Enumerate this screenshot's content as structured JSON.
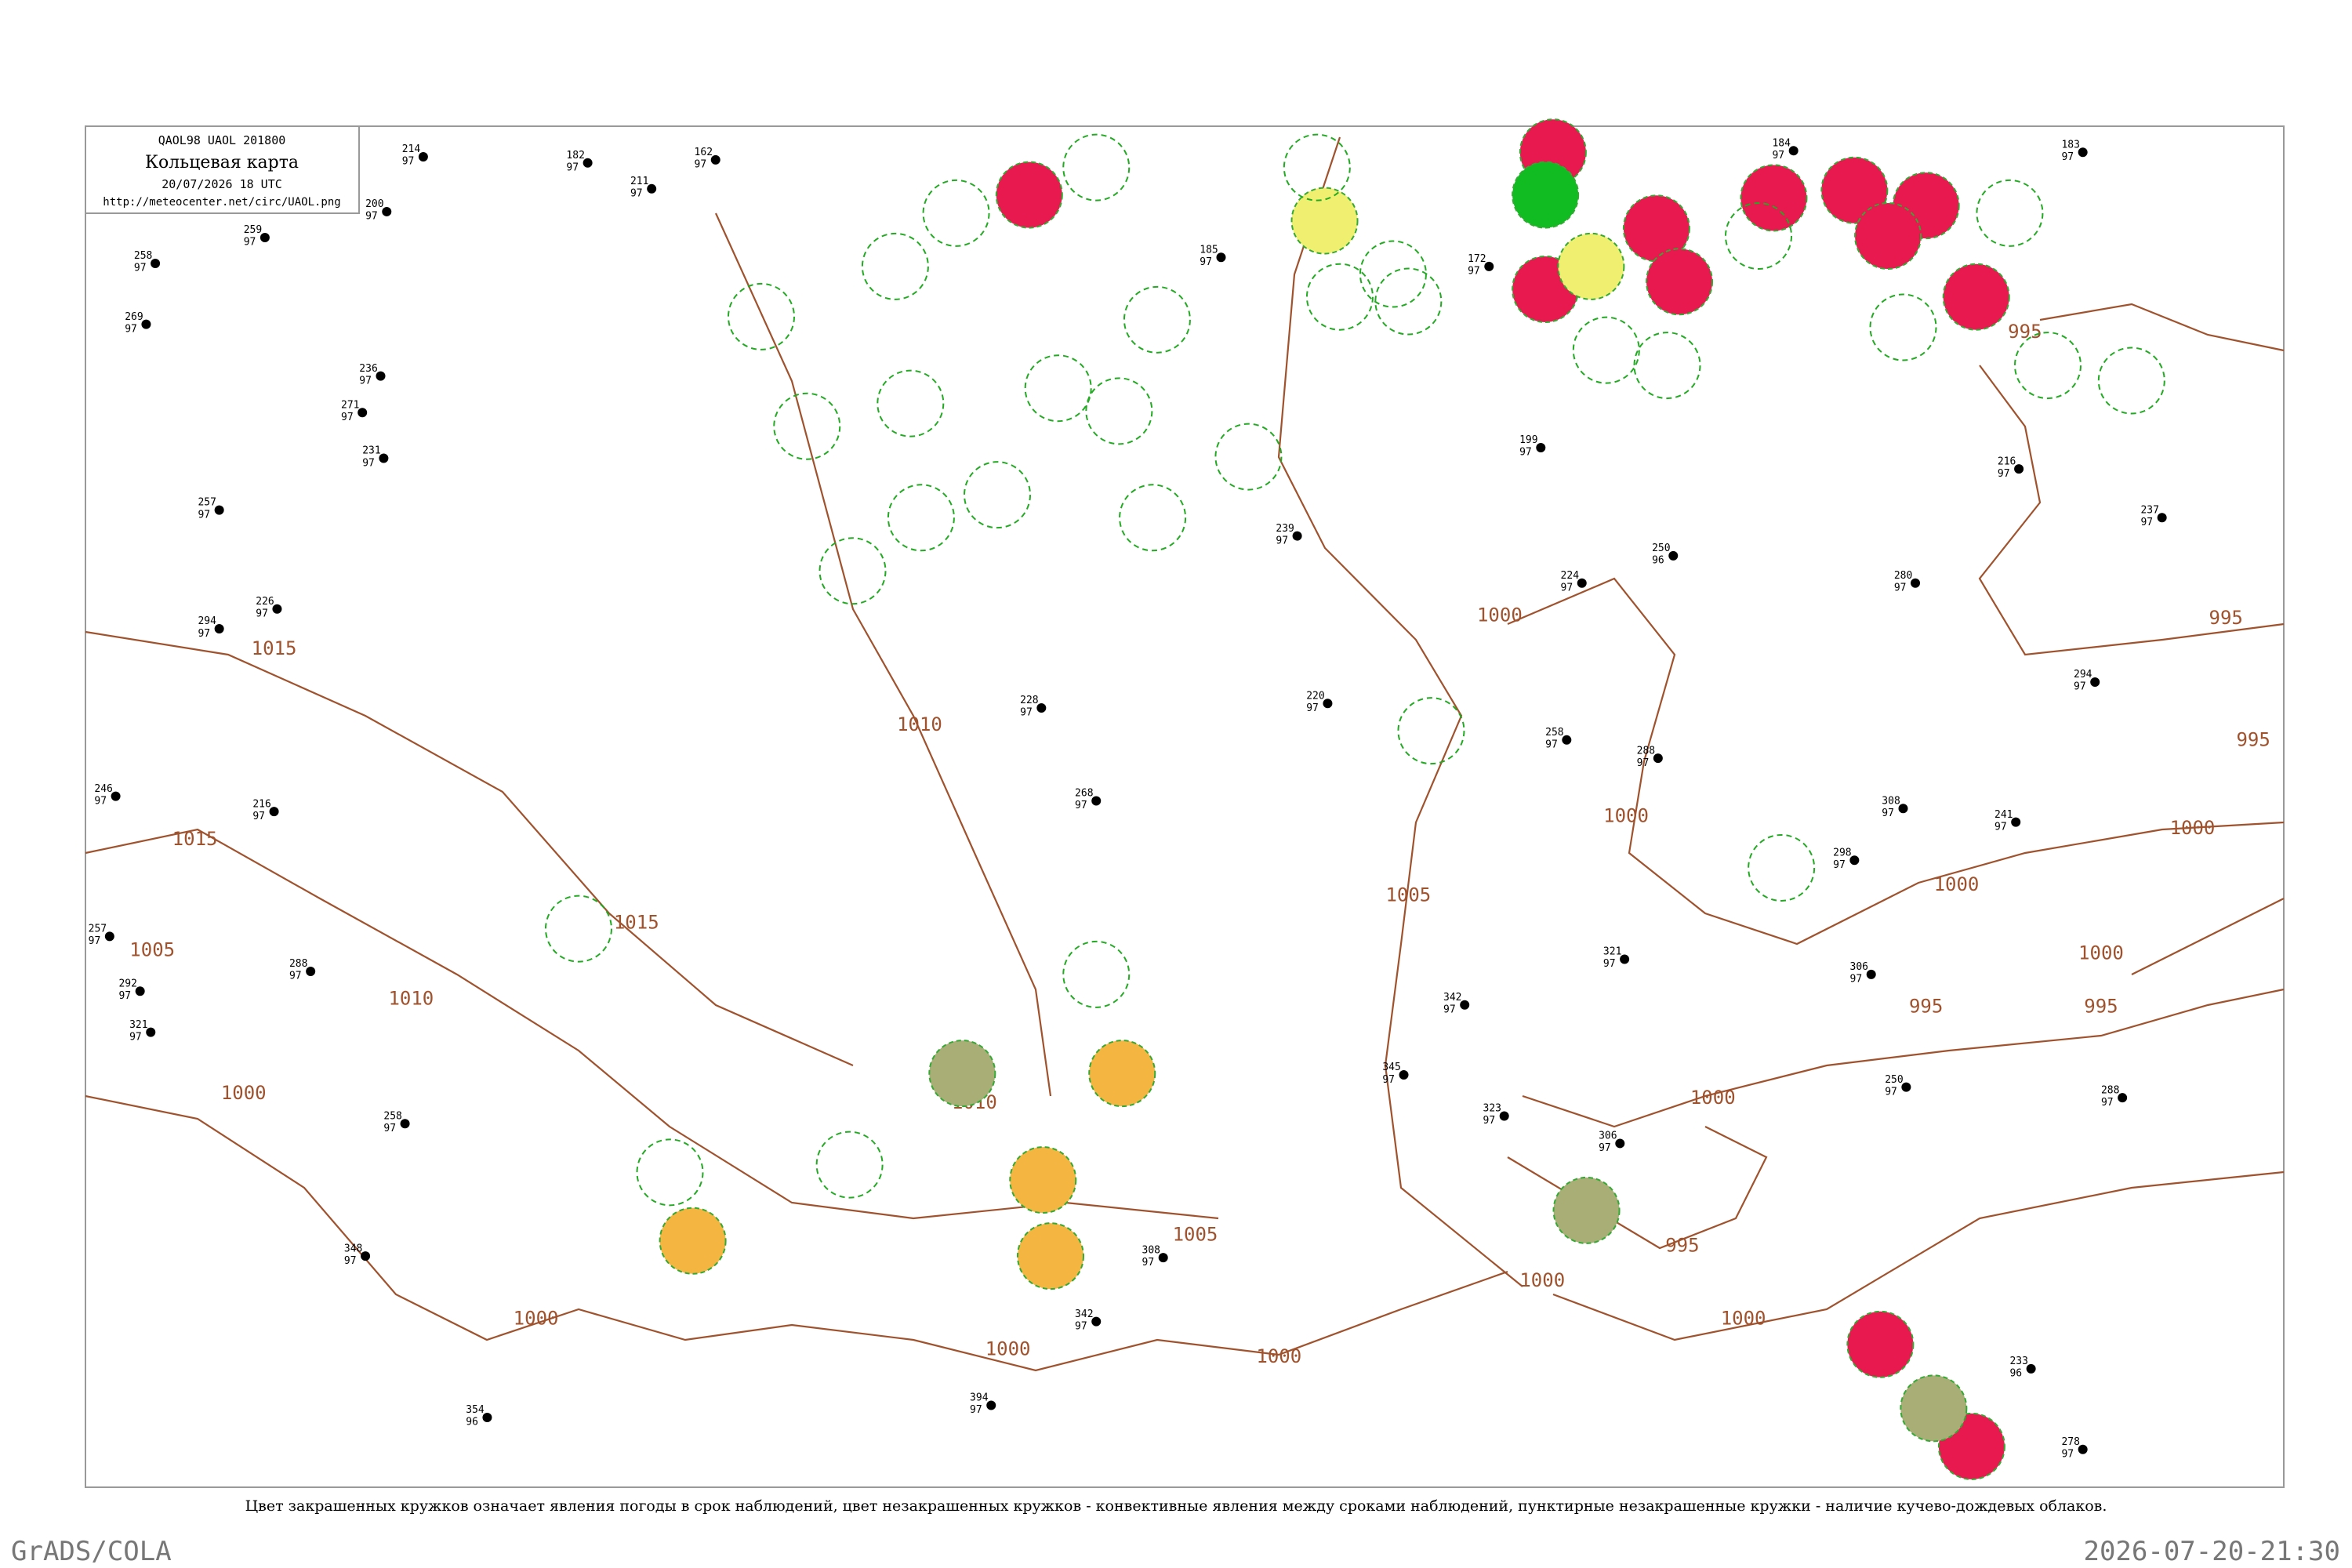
{
  "header": {
    "code": "QAOL98  UAOL  201800",
    "title": "Кольцевая карта",
    "date": "20/07/2026 18 UTC",
    "url": "http://meteocenter.net/circ/UAOL.png"
  },
  "isobar_labels": [
    "1015",
    "1015",
    "1010",
    "1015",
    "1005",
    "1010",
    "1010",
    "1005",
    "1000",
    "1000",
    "1000",
    "1000",
    "1005",
    "1000",
    "1000",
    "1000",
    "1000",
    "1000",
    "995",
    "995",
    "995",
    "1000",
    "1000",
    "995",
    "995",
    "995",
    "1000"
  ],
  "stations": [
    [
      "214",
      "97"
    ],
    [
      "182",
      "97"
    ],
    [
      "211",
      "97"
    ],
    [
      "162",
      "97"
    ],
    [
      "200",
      "97"
    ],
    [
      "258",
      "97"
    ],
    [
      "259",
      "97"
    ],
    [
      "269",
      "97"
    ],
    [
      "236",
      "97"
    ],
    [
      "271",
      "97"
    ],
    [
      "231",
      "97"
    ],
    [
      "257",
      "97"
    ],
    [
      "294",
      "97"
    ],
    [
      "226",
      "97"
    ],
    [
      "246",
      "97"
    ],
    [
      "216",
      "97"
    ],
    [
      "257",
      "97"
    ],
    [
      "292",
      "97"
    ],
    [
      "321",
      "97"
    ],
    [
      "288",
      "97"
    ],
    [
      "258",
      "97"
    ],
    [
      "348",
      "97"
    ],
    [
      "354",
      "96"
    ],
    [
      "394",
      "97"
    ],
    [
      "342",
      "97"
    ],
    [
      "308",
      "97"
    ],
    [
      "345",
      "97"
    ],
    [
      "239",
      "97"
    ],
    [
      "228",
      "97"
    ],
    [
      "268",
      "97"
    ],
    [
      "220",
      "97"
    ],
    [
      "258",
      "97"
    ],
    [
      "288",
      "97"
    ],
    [
      "323",
      "97"
    ],
    [
      "306",
      "97"
    ],
    [
      "250",
      "96"
    ],
    [
      "224",
      "97"
    ],
    [
      "199",
      "97"
    ],
    [
      "172",
      "97"
    ],
    [
      "185",
      "97"
    ],
    [
      "184",
      "97"
    ],
    [
      "183",
      "97"
    ],
    [
      "216",
      "97"
    ],
    [
      "237",
      "97"
    ],
    [
      "294",
      "97"
    ],
    [
      "308",
      "97"
    ],
    [
      "241",
      "97"
    ],
    [
      "298",
      "97"
    ],
    [
      "233",
      "96"
    ],
    [
      "278",
      "97"
    ],
    [
      "288",
      "97"
    ],
    [
      "250",
      "97"
    ],
    [
      "306",
      "97"
    ],
    [
      "321",
      "97"
    ],
    [
      "342",
      "97"
    ],
    [
      "280",
      "97"
    ]
  ],
  "caption": "Цвет закрашенных кружков означает явления погоды в срок наблюдений, цвет незакрашенных кружков - конвективные явления между сроками наблюдений, пунктирные незакрашенные кружки - наличие кучево-дождевых облаков.",
  "footer_left": "GrADS/COLA",
  "footer_right": "2026-07-20-21:30"
}
